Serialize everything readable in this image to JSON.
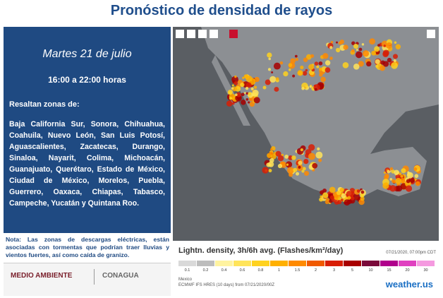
{
  "header": {
    "title": "Pronóstico de densidad de rayos"
  },
  "panel": {
    "date": "Martes 21 de julio",
    "hours": "16:00 a 22:00 horas",
    "intro": "Resaltan zonas de:",
    "regions": "Baja California Sur, Sonora, Chihuahua, Coahuila, Nuevo León, San Luis Potosí, Aguascalientes, Zacatecas, Durango, Sinaloa, Nayarit, Colima, Michoacán, Guanajuato, Querétaro, Estado de México, Ciudad de México, Morelos, Puebla, Guerrero, Oaxaca, Chiapas, Tabasco, Campeche, Yucatán y Quintana Roo."
  },
  "note": "Nota: Las zonas de descargas eléctricas, están asociadas con tormentas que podrían traer lluvias y vientos fuertes, así como caída de granizo.",
  "logos": {
    "left": "MEDIO AMBIENTE",
    "right": "CONAGUA"
  },
  "legend": {
    "title": "Lightn. density, 3h/6h avg. (Flashes/km²/day)",
    "valid": "07/21/2020, 07:00pm CDT",
    "labels": [
      "0.1",
      "0.2",
      "0.4",
      "0.6",
      "0.8",
      "1",
      "1.5",
      "2",
      "3",
      "5",
      "10",
      "15",
      "20",
      "30"
    ],
    "colors": [
      "#d9d9d9",
      "#bdbdbd",
      "#fff3a0",
      "#ffe45a",
      "#ffd21f",
      "#ffb000",
      "#ff8a00",
      "#f05a00",
      "#d81e05",
      "#a80000",
      "#7a0a3a",
      "#b0008c",
      "#e040c0",
      "#f59ae0"
    ],
    "region": "Mexico",
    "model": "ECMWF IFS HRES (10 days) from 07/21/2020/00Z",
    "brand": "weather.us"
  }
}
